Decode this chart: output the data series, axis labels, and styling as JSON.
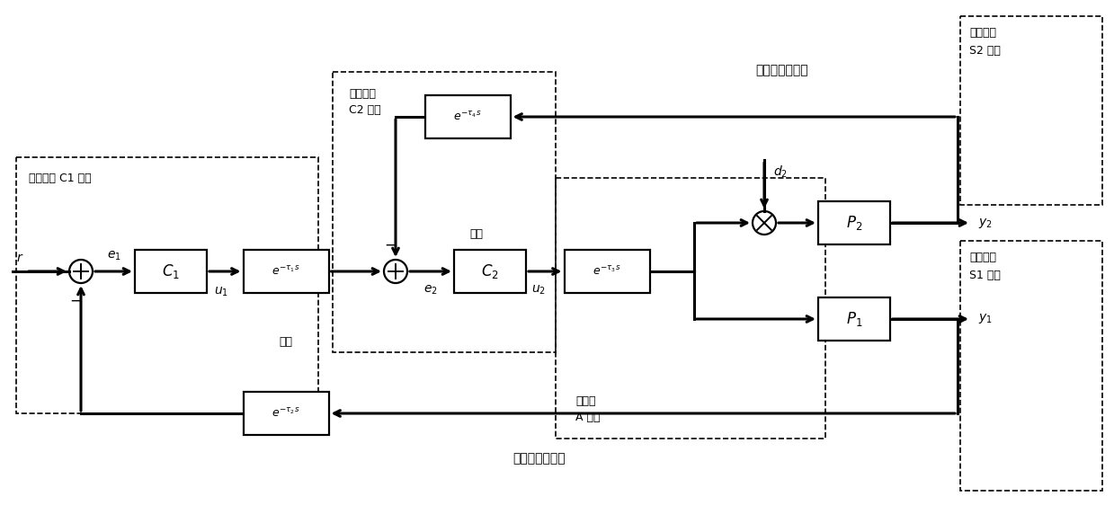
{
  "bg_color": "#ffffff",
  "fig_width": 12.39,
  "fig_height": 5.82,
  "node_C1_label": "主控制器 C1 节点",
  "node_C2_line1": "副控制器",
  "node_C2_line2": "C2 节点",
  "network1_label": "网络",
  "network2_label": "网络",
  "node_A_line1": "执行器",
  "node_A_line2": "A 节点",
  "node_S1_line1": "主传感器",
  "node_S1_line2": "S1 节点",
  "node_S2_line1": "副传感器",
  "node_S2_line2": "S2 节点",
  "main_loop_label": "主闭环控制回路",
  "sub_loop_label": "副闭环控制回路"
}
